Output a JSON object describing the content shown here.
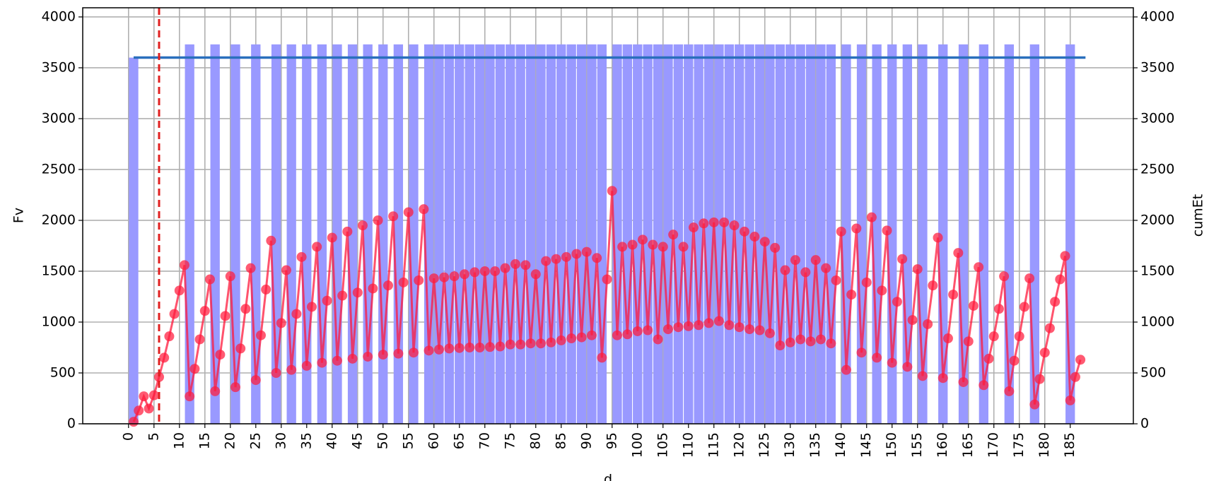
{
  "chart_data": {
    "type": "line",
    "xlabel": "d",
    "ylabel": "Fv",
    "y2label": "cumEt",
    "xlim": [
      -9,
      197.4
    ],
    "ylim": [
      0,
      4090
    ],
    "y2lim": [
      0,
      4090
    ],
    "xticks": [
      0,
      5,
      10,
      15,
      20,
      25,
      30,
      35,
      40,
      45,
      50,
      55,
      60,
      65,
      70,
      75,
      80,
      85,
      90,
      95,
      100,
      105,
      110,
      115,
      120,
      125,
      130,
      135,
      140,
      145,
      150,
      155,
      160,
      165,
      170,
      175,
      180,
      185
    ],
    "yticks": [
      0,
      500,
      1000,
      1500,
      2000,
      2500,
      3000,
      3500,
      4000
    ],
    "y2ticks": [
      0,
      500,
      1000,
      1500,
      2000,
      2500,
      3000,
      3500,
      4000
    ],
    "grid": true,
    "vline": {
      "x": 6,
      "color": "#e02020"
    },
    "series": [
      {
        "type": "bar",
        "axis": "y2",
        "color": "#9999ff",
        "x": [
          1,
          12,
          17,
          21,
          25,
          29,
          32,
          35,
          38,
          41,
          44,
          47,
          50,
          53,
          56,
          59,
          61,
          63,
          65,
          67,
          69,
          71,
          73,
          75,
          77,
          79,
          81,
          83,
          85,
          87,
          89,
          91,
          93,
          96,
          98,
          100,
          102,
          104,
          106,
          108,
          110,
          112,
          114,
          116,
          118,
          120,
          122,
          124,
          126,
          128,
          130,
          132,
          134,
          136,
          138,
          141,
          144,
          147,
          150,
          153,
          156,
          160,
          164,
          168,
          173,
          178,
          185
        ],
        "values": [
          3600,
          3730,
          3730,
          3730,
          3730,
          3730,
          3730,
          3730,
          3730,
          3730,
          3730,
          3730,
          3730,
          3730,
          3730,
          3730,
          3730,
          3730,
          3730,
          3730,
          3730,
          3730,
          3730,
          3730,
          3730,
          3730,
          3730,
          3730,
          3730,
          3730,
          3730,
          3730,
          3730,
          3730,
          3730,
          3730,
          3730,
          3730,
          3730,
          3730,
          3730,
          3730,
          3730,
          3730,
          3730,
          3730,
          3730,
          3730,
          3730,
          3730,
          3730,
          3730,
          3730,
          3730,
          3730,
          3730,
          3730,
          3730,
          3730,
          3730,
          3730,
          3730,
          3730,
          3730,
          3730,
          3730,
          3730
        ]
      },
      {
        "type": "line",
        "axis": "y2",
        "color": "#2a6fbd",
        "x": [
          1,
          188
        ],
        "values": [
          3600,
          3600
        ]
      },
      {
        "type": "line",
        "color": "#ff1a3c",
        "x": [
          1,
          2,
          3,
          4,
          5,
          6,
          7,
          8,
          9,
          10,
          11,
          12,
          13,
          14,
          15,
          16,
          17,
          18,
          19,
          20,
          21,
          22,
          23,
          24,
          25,
          26,
          27,
          28,
          29,
          30,
          31,
          32,
          33,
          34,
          35,
          36,
          37,
          38,
          39,
          40,
          41,
          42,
          43,
          44,
          45,
          46,
          47,
          48,
          49,
          50,
          51,
          52,
          53,
          54,
          55,
          56,
          57,
          58,
          59,
          60,
          61,
          62,
          63,
          64,
          65,
          66,
          67,
          68,
          69,
          70,
          71,
          72,
          73,
          74,
          75,
          76,
          77,
          78,
          79,
          80,
          81,
          82,
          83,
          84,
          85,
          86,
          87,
          88,
          89,
          90,
          91,
          92,
          93,
          94,
          95,
          96,
          97,
          98,
          99,
          100,
          101,
          102,
          103,
          104,
          105,
          106,
          107,
          108,
          109,
          110,
          111,
          112,
          113,
          114,
          115,
          116,
          117,
          118,
          119,
          120,
          121,
          122,
          123,
          124,
          125,
          126,
          127,
          128,
          129,
          130,
          131,
          132,
          133,
          134,
          135,
          136,
          137,
          138,
          139,
          140,
          141,
          142,
          143,
          144,
          145,
          146,
          147,
          148,
          149,
          150,
          151,
          152,
          153,
          154,
          155,
          156,
          157,
          158,
          159,
          160,
          161,
          162,
          163,
          164,
          165,
          166,
          167,
          168,
          169,
          170,
          171,
          172,
          173,
          174,
          175,
          176,
          177,
          178,
          179,
          180,
          181,
          182,
          183,
          184,
          185,
          186,
          187
        ],
        "values": [
          20,
          130,
          270,
          150,
          280,
          460,
          650,
          860,
          1080,
          1310,
          1560,
          270,
          540,
          830,
          1110,
          1420,
          320,
          680,
          1060,
          1450,
          360,
          740,
          1130,
          1530,
          430,
          870,
          1320,
          1800,
          500,
          990,
          1510,
          530,
          1080,
          1640,
          570,
          1150,
          1740,
          600,
          1210,
          1830,
          620,
          1260,
          1890,
          640,
          1290,
          1950,
          660,
          1330,
          2000,
          680,
          1360,
          2040,
          690,
          1390,
          2080,
          700,
          1410,
          2110,
          720,
          1430,
          730,
          1440,
          740,
          1450,
          745,
          1470,
          750,
          1490,
          750,
          1500,
          755,
          1500,
          760,
          1530,
          780,
          1570,
          780,
          1560,
          790,
          1470,
          790,
          1600,
          800,
          1620,
          820,
          1640,
          840,
          1670,
          850,
          1690,
          870,
          1630,
          650,
          1420,
          2290,
          870,
          1740,
          880,
          1760,
          910,
          1810,
          920,
          1760,
          830,
          1740,
          930,
          1860,
          950,
          1740,
          960,
          1930,
          970,
          1970,
          990,
          1980,
          1010,
          1980,
          970,
          1950,
          950,
          1890,
          930,
          1840,
          920,
          1790,
          890,
          1730,
          770,
          1510,
          800,
          1610,
          830,
          1490,
          810,
          1610,
          830,
          1530,
          790,
          1410,
          1890,
          530,
          1270,
          1920,
          700,
          1390,
          2030,
          650,
          1310,
          1900,
          600,
          1200,
          1620,
          560,
          1020,
          1520,
          470,
          980,
          1360,
          1830,
          450,
          840,
          1270,
          1680,
          410,
          810,
          1160,
          1540,
          380,
          640,
          860,
          1130,
          1450,
          320,
          620,
          860,
          1150,
          1430,
          190,
          440,
          700,
          940,
          1200,
          1420,
          1650,
          230,
          460,
          630
        ]
      }
    ]
  }
}
